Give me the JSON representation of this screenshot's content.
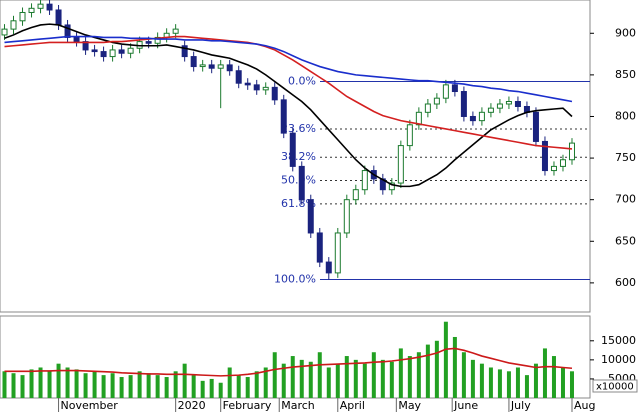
{
  "chart_data": [
    {
      "type": "candlestick",
      "xlim": [
        -0.5,
        65
      ],
      "ylim": [
        565,
        940
      ],
      "yticks": [
        600,
        650,
        700,
        750,
        800,
        850,
        900
      ],
      "up_color": "#1b7a2e",
      "down_color": "#1a237e",
      "open": [
        898,
        905,
        915,
        925,
        930,
        935,
        928,
        910,
        895,
        890,
        880,
        878,
        872,
        880,
        876,
        882,
        890,
        888,
        895,
        900,
        885,
        872,
        860,
        862,
        858,
        862,
        855,
        840,
        838,
        832,
        835,
        820,
        780,
        740,
        700,
        660,
        625,
        612,
        660,
        700,
        712,
        735,
        725,
        712,
        720,
        765,
        790,
        805,
        815,
        822,
        838,
        830,
        800,
        795,
        805,
        810,
        815,
        818,
        812,
        805,
        770,
        735,
        740,
        748
      ],
      "high": [
        911,
        921,
        931,
        936,
        941,
        941,
        934,
        916,
        901,
        896,
        886,
        884,
        886,
        886,
        888,
        896,
        896,
        901,
        906,
        911,
        891,
        878,
        868,
        868,
        868,
        868,
        861,
        846,
        844,
        841,
        841,
        826,
        786,
        746,
        706,
        666,
        631,
        666,
        706,
        718,
        741,
        741,
        731,
        726,
        771,
        796,
        811,
        821,
        828,
        844,
        844,
        836,
        806,
        811,
        816,
        821,
        824,
        824,
        818,
        811,
        776,
        746,
        754,
        774
      ],
      "low": [
        892,
        899,
        909,
        919,
        924,
        922,
        904,
        889,
        884,
        874,
        872,
        866,
        866,
        870,
        870,
        876,
        882,
        882,
        889,
        894,
        866,
        854,
        854,
        852,
        810,
        849,
        834,
        832,
        826,
        826,
        814,
        774,
        734,
        694,
        654,
        619,
        604,
        606,
        654,
        694,
        706,
        719,
        706,
        706,
        714,
        759,
        784,
        799,
        809,
        816,
        824,
        794,
        789,
        789,
        799,
        804,
        809,
        806,
        799,
        764,
        729,
        729,
        734,
        742
      ],
      "close": [
        905,
        915,
        925,
        930,
        935,
        928,
        910,
        895,
        890,
        880,
        878,
        872,
        880,
        876,
        882,
        890,
        888,
        895,
        900,
        905,
        872,
        860,
        862,
        858,
        862,
        855,
        840,
        838,
        832,
        835,
        820,
        780,
        740,
        700,
        660,
        625,
        612,
        660,
        700,
        712,
        735,
        725,
        712,
        720,
        765,
        790,
        805,
        815,
        822,
        838,
        830,
        800,
        795,
        805,
        810,
        815,
        818,
        812,
        805,
        770,
        735,
        740,
        748,
        768
      ],
      "series": [
        {
          "color": "#000000",
          "values": [
            894,
            898,
            903,
            907,
            910,
            911,
            910,
            906,
            902,
            898,
            895,
            892,
            889,
            887,
            886,
            885,
            885,
            885,
            886,
            884,
            882,
            880,
            877,
            874,
            872,
            870,
            866,
            862,
            857,
            850,
            842,
            834,
            826,
            818,
            808,
            796,
            784,
            772,
            760,
            748,
            738,
            730,
            724,
            718,
            716,
            716,
            718,
            724,
            730,
            738,
            748,
            757,
            766,
            775,
            784,
            790,
            796,
            801,
            805,
            807,
            808,
            809,
            810,
            800
          ]
        },
        {
          "color": "#d42020",
          "values": [
            884,
            885,
            886,
            887,
            888,
            889,
            889,
            889,
            889,
            889,
            889,
            889,
            890,
            890,
            891,
            892,
            893,
            894,
            895,
            896,
            896,
            895,
            894,
            893,
            892,
            891,
            890,
            889,
            887,
            884,
            880,
            874,
            868,
            861,
            854,
            847,
            840,
            832,
            824,
            818,
            812,
            806,
            801,
            798,
            795,
            793,
            791,
            789,
            787,
            785,
            783,
            781,
            779,
            777,
            775,
            773,
            771,
            769,
            767,
            765,
            764,
            763,
            762,
            761
          ]
        },
        {
          "color": "#1a2ecc",
          "values": [
            889,
            890,
            891,
            892,
            893,
            894,
            895,
            896,
            896,
            896,
            896,
            895,
            895,
            895,
            894,
            894,
            894,
            893,
            893,
            893,
            892,
            892,
            892,
            891,
            891,
            890,
            889,
            888,
            887,
            885,
            882,
            878,
            873,
            868,
            864,
            860,
            857,
            854,
            852,
            850,
            849,
            848,
            847,
            846,
            845,
            844,
            843,
            843,
            842,
            841,
            840,
            839,
            837,
            836,
            834,
            833,
            831,
            830,
            828,
            826,
            824,
            822,
            820,
            818
          ]
        }
      ],
      "fib_levels": [
        {
          "label": "0.0%",
          "value": 842
        },
        {
          "label": "23.6%",
          "value": 785
        },
        {
          "label": "38.2%",
          "value": 751
        },
        {
          "label": "50.0%",
          "value": 723
        },
        {
          "label": "61.8%",
          "value": 695
        },
        {
          "label": "100.0%",
          "value": 604
        }
      ],
      "fib_color": "#2233aa"
    },
    {
      "type": "bar",
      "xlim": [
        -0.5,
        65
      ],
      "ylim": [
        0,
        21500
      ],
      "yticks": [
        5000,
        10000,
        15000
      ],
      "unit_label": "x10000",
      "xticks": [
        {
          "value": 6,
          "label": "November"
        },
        {
          "value": 19,
          "label": "2020"
        },
        {
          "value": 24,
          "label": "February"
        },
        {
          "value": 30.5,
          "label": "March"
        },
        {
          "value": 37,
          "label": "April"
        },
        {
          "value": 43.5,
          "label": "May"
        },
        {
          "value": 49.7,
          "label": "June"
        },
        {
          "value": 56,
          "label": "July"
        },
        {
          "value": 63,
          "label": "Aug"
        }
      ],
      "color": "#22a022",
      "values": [
        7000,
        6500,
        6000,
        7500,
        8000,
        7000,
        9000,
        8000,
        7500,
        6500,
        7000,
        6000,
        6500,
        5500,
        6000,
        7000,
        6500,
        6000,
        5500,
        7000,
        9000,
        6000,
        4500,
        5000,
        4000,
        8000,
        6000,
        5500,
        7000,
        8000,
        12000,
        9000,
        11000,
        10000,
        9500,
        12000,
        8000,
        9000,
        11000,
        10000,
        9000,
        12000,
        10000,
        9500,
        13000,
        11000,
        12000,
        14000,
        15000,
        20000,
        16000,
        12000,
        10000,
        9000,
        8000,
        7500,
        7000,
        8000,
        6000,
        9000,
        13000,
        11000,
        8000,
        7000
      ],
      "series": [
        {
          "color": "#cc1a1a",
          "values": [
            7000,
            7000,
            7000,
            7000,
            7100,
            7100,
            7200,
            7200,
            7200,
            7100,
            7000,
            6900,
            6800,
            6600,
            6500,
            6400,
            6300,
            6300,
            6200,
            6200,
            6200,
            6100,
            6000,
            5900,
            5800,
            5900,
            6000,
            6200,
            6500,
            7000,
            7500,
            7800,
            8100,
            8300,
            8500,
            8700,
            8800,
            8900,
            9000,
            9100,
            9200,
            9400,
            9500,
            9700,
            10000,
            10300,
            10700,
            11200,
            11800,
            12800,
            13000,
            12500,
            11800,
            11000,
            10400,
            9800,
            9200,
            8800,
            8400,
            8000,
            8200,
            8200,
            8000,
            7800
          ]
        }
      ]
    }
  ]
}
